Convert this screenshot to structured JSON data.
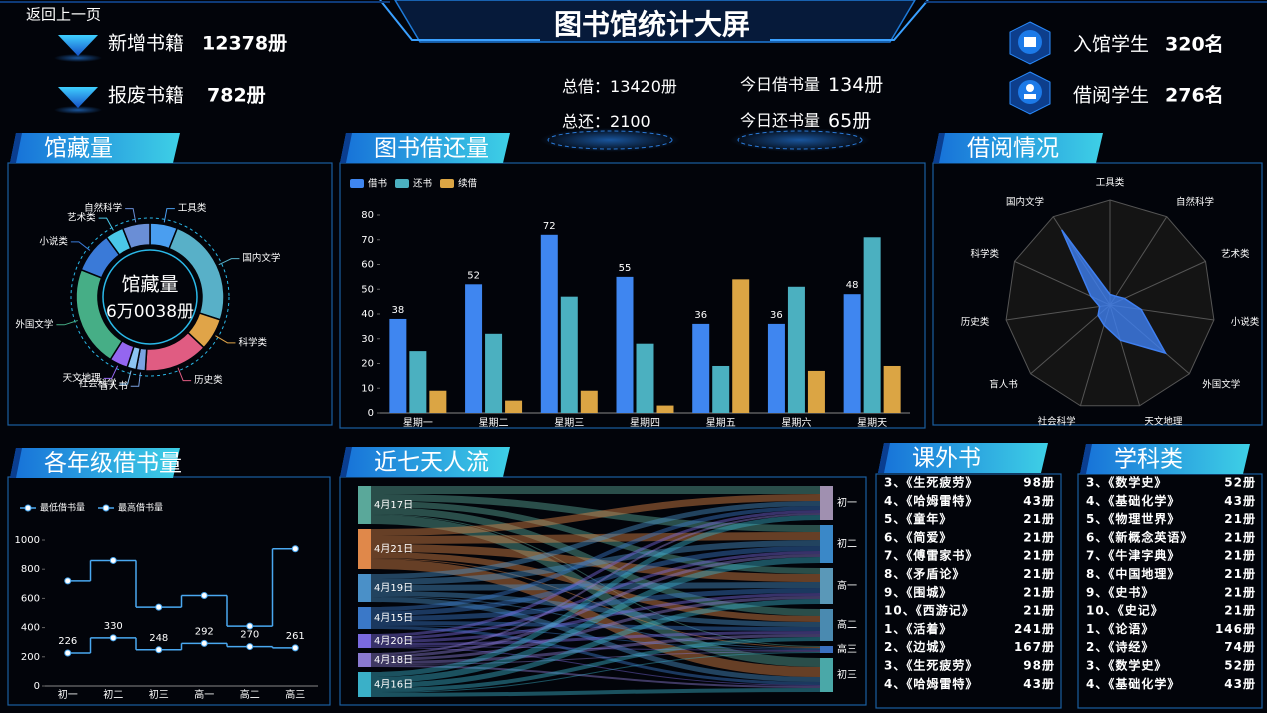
{
  "header": {
    "back": "返回上一页",
    "title": "图书馆统计大屏"
  },
  "stats_left": [
    {
      "label": "新增书籍",
      "value": "12378册"
    },
    {
      "label": "报废书籍",
      "value": "782册"
    }
  ],
  "stats_center": [
    {
      "label": "总借：",
      "value": "13420册"
    },
    {
      "label": "总还：",
      "value": "2100"
    },
    {
      "label": "今日借书量",
      "value": "134册"
    },
    {
      "label": "今日还书量",
      "value": "65册"
    }
  ],
  "stats_right": [
    {
      "label": "入馆学生",
      "value": "320名"
    },
    {
      "label": "借阅学生",
      "value": "276名"
    }
  ],
  "chart_data": [
    {
      "type": "pie",
      "title": "馆藏量",
      "center_label": "馆藏量",
      "center_value": "6万0038册",
      "categories": [
        "工具类",
        "国内文学",
        "科学类",
        "历史类",
        "盲人书",
        "社会科学",
        "天文地理",
        "外国文学",
        "小说类",
        "艺术类",
        "自然科学"
      ],
      "values": [
        6,
        24,
        7,
        14,
        2,
        2,
        4,
        22,
        9,
        4,
        6
      ],
      "colors": [
        "#4a9ef0",
        "#58b0c8",
        "#e0a448",
        "#e05c82",
        "#7aa2e2",
        "#8cc4f2",
        "#9466f0",
        "#46ae86",
        "#3a7ad8",
        "#4ac8e8",
        "#6a8ed6"
      ]
    },
    {
      "type": "bar",
      "title": "图书借还量",
      "categories": [
        "星期一",
        "星期二",
        "星期三",
        "星期四",
        "星期五",
        "星期六",
        "星期天"
      ],
      "series": [
        {
          "name": "借书",
          "color": "#3f86f0",
          "values": [
            38,
            52,
            72,
            55,
            36,
            36,
            48
          ],
          "data_labels": true
        },
        {
          "name": "还书",
          "color": "#4bb0c0",
          "values": [
            25,
            32,
            47,
            28,
            19,
            51,
            71
          ],
          "data_labels": false
        },
        {
          "name": "续借",
          "color": "#dba544",
          "values": [
            9,
            5,
            9,
            3,
            54,
            17,
            19
          ],
          "data_labels": false
        }
      ],
      "ylim": [
        0,
        80
      ],
      "yticks": [
        0,
        10,
        20,
        30,
        40,
        50,
        60,
        70,
        80
      ]
    },
    {
      "type": "radar",
      "title": "借阅情况",
      "categories": [
        "工具类",
        "自然科学",
        "艺术类",
        "小说类",
        "外国文学",
        "天文地理",
        "社会科学",
        "盲人书",
        "历史类",
        "科学类",
        "国内文学"
      ],
      "values": [
        10,
        10,
        15,
        30,
        70,
        35,
        20,
        15,
        10,
        20,
        85
      ],
      "rlim": [
        0,
        100
      ],
      "color": "#3f7ff0"
    },
    {
      "type": "line",
      "title": "各年级借书量",
      "step": "middle",
      "categories": [
        "初一",
        "初二",
        "初三",
        "高一",
        "高二",
        "高三"
      ],
      "series": [
        {
          "name": "最低借书量",
          "color": "#4aa8f0",
          "values": [
            226,
            330,
            248,
            292,
            270,
            261
          ],
          "data_labels": true
        },
        {
          "name": "最高借书量",
          "color": "#4aa8f0",
          "values": [
            720,
            860,
            540,
            620,
            410,
            940
          ],
          "data_labels": false
        }
      ],
      "ylim": [
        0,
        1000
      ],
      "yticks": [
        0,
        200,
        400,
        600,
        800,
        1000
      ]
    },
    {
      "type": "sankey",
      "title": "近七天人流",
      "sources": [
        "4月17日",
        "4月21日",
        "4月19日",
        "4月15日",
        "4月20日",
        "4月18日",
        "4月16日"
      ],
      "source_colors": [
        "#5aa89a",
        "#e0884a",
        "#4a90c8",
        "#3a78c8",
        "#7a6ae0",
        "#8a7ad0",
        "#3ab0c8"
      ],
      "targets": [
        "初一",
        "初二",
        "高一",
        "高二",
        "高三",
        "初三"
      ],
      "target_colors": [
        "#a090b0",
        "#3a88c8",
        "#5a98b8",
        "#4a8ab0",
        "#3a70c0",
        "#4aa8a8"
      ],
      "flows": [
        [
          8,
          7,
          6,
          7,
          1,
          9
        ],
        [
          7,
          8,
          8,
          6,
          1,
          10
        ],
        [
          5,
          6,
          6,
          5,
          1,
          5
        ],
        [
          4,
          5,
          5,
          4,
          1,
          3
        ],
        [
          3,
          3,
          3,
          3,
          1,
          1
        ],
        [
          2,
          3,
          3,
          3,
          1,
          2
        ],
        [
          5,
          6,
          5,
          4,
          1,
          4
        ]
      ]
    }
  ],
  "lists": [
    {
      "title": "课外书",
      "items": [
        {
          "name": "3、《生死疲劳》",
          "count": "98册"
        },
        {
          "name": "4、《哈姆雷特》",
          "count": "43册"
        },
        {
          "name": "5、《童年》",
          "count": "21册"
        },
        {
          "name": "6、《简爱》",
          "count": "21册"
        },
        {
          "name": "7、《傅雷家书》",
          "count": "21册"
        },
        {
          "name": "8、《矛盾论》",
          "count": "21册"
        },
        {
          "name": "9、《围城》",
          "count": "21册"
        },
        {
          "name": "10、《西游记》",
          "count": "21册"
        },
        {
          "name": "1、《活着》",
          "count": "241册"
        },
        {
          "name": "2、《边城》",
          "count": "167册"
        },
        {
          "name": "3、《生死疲劳》",
          "count": "98册"
        },
        {
          "name": "4、《哈姆雷特》",
          "count": "43册"
        }
      ]
    },
    {
      "title": "学科类",
      "items": [
        {
          "name": "3、《数学史》",
          "count": "52册"
        },
        {
          "name": "4、《基础化学》",
          "count": "43册"
        },
        {
          "name": "5、《物理世界》",
          "count": "21册"
        },
        {
          "name": "6、《新概念英语》",
          "count": "21册"
        },
        {
          "name": "7、《牛津字典》",
          "count": "21册"
        },
        {
          "name": "8、《中国地理》",
          "count": "21册"
        },
        {
          "name": "9、《史书》",
          "count": "21册"
        },
        {
          "name": "10、《史记》",
          "count": "21册"
        },
        {
          "name": "1、《论语》",
          "count": "146册"
        },
        {
          "name": "2、《诗经》",
          "count": "74册"
        },
        {
          "name": "3、《数学史》",
          "count": "52册"
        },
        {
          "name": "4、《基础化学》",
          "count": "43册"
        }
      ]
    }
  ]
}
